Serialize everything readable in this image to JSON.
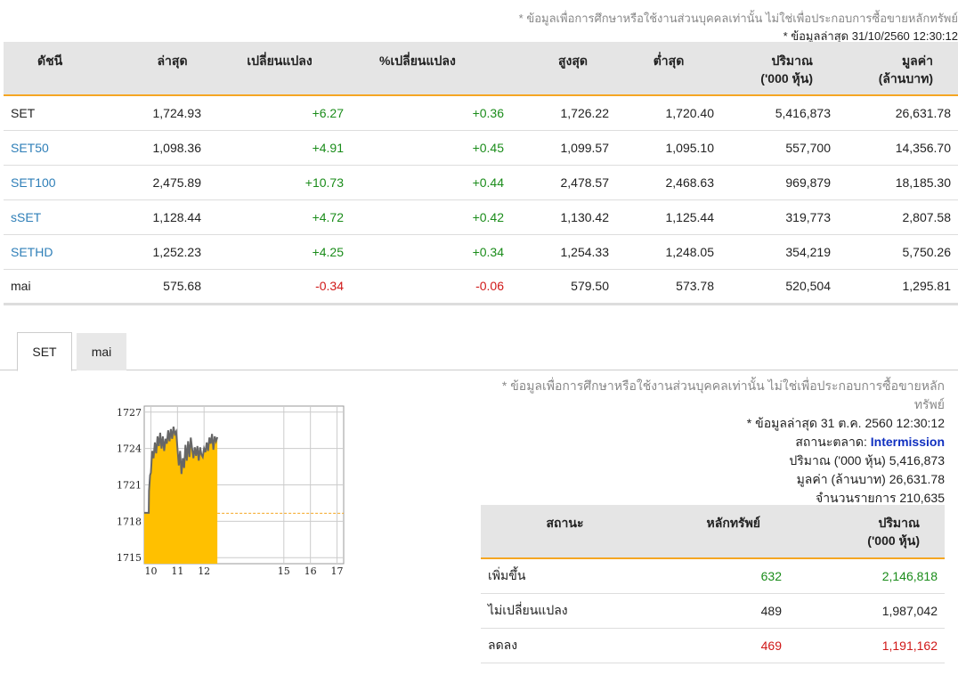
{
  "header": {
    "disclaimer": "* ข้อมูลเพื่อการศึกษาหรือใช้งานส่วนบุคคลเท่านั้น ไม่ใช่เพื่อประกอบการซื้อขายหลักทรัพย์",
    "updated": "* ข้อมูลล่าสุด 31/10/2560 12:30:12"
  },
  "index_table": {
    "columns": {
      "index": "ดัชนี",
      "last": "ล่าสุด",
      "change": "เปลี่ยนแปลง",
      "pct_change": "%เปลี่ยนแปลง",
      "high": "สูงสุด",
      "low": "ต่ำสุด",
      "volume_1": "ปริมาณ",
      "volume_2": "('000 หุ้น)",
      "value_1": "มูลค่า",
      "value_2": "(ล้านบาท)"
    },
    "rows": [
      {
        "name": "SET",
        "last": "1,724.93",
        "change": "+6.27",
        "pct": "+0.36",
        "high": "1,726.22",
        "low": "1,720.40",
        "volume": "5,416,873",
        "value": "26,631.78"
      },
      {
        "name": "SET50",
        "last": "1,098.36",
        "change": "+4.91",
        "pct": "+0.45",
        "high": "1,099.57",
        "low": "1,095.10",
        "volume": "557,700",
        "value": "14,356.70"
      },
      {
        "name": "SET100",
        "last": "2,475.89",
        "change": "+10.73",
        "pct": "+0.44",
        "high": "2,478.57",
        "low": "2,468.63",
        "volume": "969,879",
        "value": "18,185.30"
      },
      {
        "name": "sSET",
        "last": "1,128.44",
        "change": "+4.72",
        "pct": "+0.42",
        "high": "1,130.42",
        "low": "1,125.44",
        "volume": "319,773",
        "value": "2,807.58"
      },
      {
        "name": "SETHD",
        "last": "1,252.23",
        "change": "+4.25",
        "pct": "+0.34",
        "high": "1,254.33",
        "low": "1,248.05",
        "volume": "354,219",
        "value": "5,750.26"
      },
      {
        "name": "mai",
        "last": "575.68",
        "change": "-0.34",
        "pct": "-0.06",
        "high": "579.50",
        "low": "573.78",
        "volume": "520,504",
        "value": "1,295.81"
      }
    ]
  },
  "tabs": [
    {
      "label": "SET",
      "active": true
    },
    {
      "label": "mai",
      "active": false
    }
  ],
  "chart_data": {
    "type": "area",
    "x_ticks": [
      "10",
      "11",
      "12",
      "15",
      "16",
      "17"
    ],
    "y_ticks": [
      "1727",
      "1724",
      "1721",
      "1718",
      "1715"
    ],
    "ylim": [
      1714.5,
      1727.5
    ],
    "xlim": [
      9.75,
      17.25
    ],
    "reference_line": 1718.66,
    "series": [
      {
        "x": [
          9.75,
          9.92,
          9.93,
          9.97,
          10.0,
          10.05,
          10.1,
          10.15,
          10.2,
          10.25,
          10.3,
          10.35,
          10.4,
          10.45,
          10.5,
          10.55,
          10.6,
          10.65,
          10.7,
          10.75,
          10.8,
          10.85,
          10.9,
          10.95,
          11.0,
          11.05,
          11.1,
          11.15,
          11.2,
          11.25,
          11.3,
          11.35,
          11.4,
          11.45,
          11.5,
          11.55,
          11.6,
          11.65,
          11.7,
          11.75,
          11.8,
          11.85,
          11.9,
          11.95,
          12.0,
          12.05,
          12.1,
          12.15,
          12.2,
          12.25,
          12.3,
          12.35,
          12.4,
          12.45,
          12.5
        ],
        "y": [
          1718.7,
          1718.7,
          1720.5,
          1721.8,
          1722.0,
          1723.8,
          1723.2,
          1724.5,
          1723.6,
          1725.0,
          1724.2,
          1725.3,
          1724.0,
          1725.0,
          1723.8,
          1724.8,
          1724.4,
          1725.5,
          1724.6,
          1725.6,
          1724.8,
          1725.8,
          1725.2,
          1725.4,
          1724.0,
          1722.6,
          1723.8,
          1721.9,
          1723.2,
          1722.4,
          1724.3,
          1723.0,
          1724.6,
          1723.3,
          1724.9,
          1724.0,
          1723.2,
          1724.1,
          1723.4,
          1724.2,
          1723.0,
          1724.1,
          1723.5,
          1723.3,
          1724.0,
          1723.7,
          1724.5,
          1723.8,
          1724.9,
          1724.4,
          1725.2,
          1723.9,
          1725.0,
          1724.6,
          1724.93
        ]
      }
    ],
    "colors": {
      "fill": "#ffc000",
      "line": "#666666",
      "reference": "#f5a623",
      "grid": "#cccccc"
    }
  },
  "market_info": {
    "disclaimer": "* ข้อมูลเพื่อการศึกษาหรือใช้งานส่วนบุคคลเท่านั้น ไม่ใช่เพื่อประกอบการซื้อขายหลักทรัพย์",
    "updated": "* ข้อมูลล่าสุด 31 ต.ค. 2560 12:30:12",
    "status_label": "สถานะตลาด:",
    "status_value": "Intermission",
    "volume_label": "ปริมาณ ('000 หุ้น)",
    "volume_value": "5,416,873",
    "value_label": "มูลค่า (ล้านบาท)",
    "value_value": "26,631.78",
    "trades_label": "จำนวนรายการ",
    "trades_value": "210,635"
  },
  "status_table": {
    "columns": {
      "status": "สถานะ",
      "securities": "หลักทรัพย์",
      "volume_1": "ปริมาณ",
      "volume_2": "('000 หุ้น)"
    },
    "rows": [
      {
        "label": "เพิ่มขึ้น",
        "securities": "632",
        "volume": "2,146,818",
        "tone": "pos"
      },
      {
        "label": "ไม่เปลี่ยนแปลง",
        "securities": "489",
        "volume": "1,987,042",
        "tone": "neutral"
      },
      {
        "label": "ลดลง",
        "securities": "469",
        "volume": "1,191,162",
        "tone": "neg"
      }
    ]
  }
}
